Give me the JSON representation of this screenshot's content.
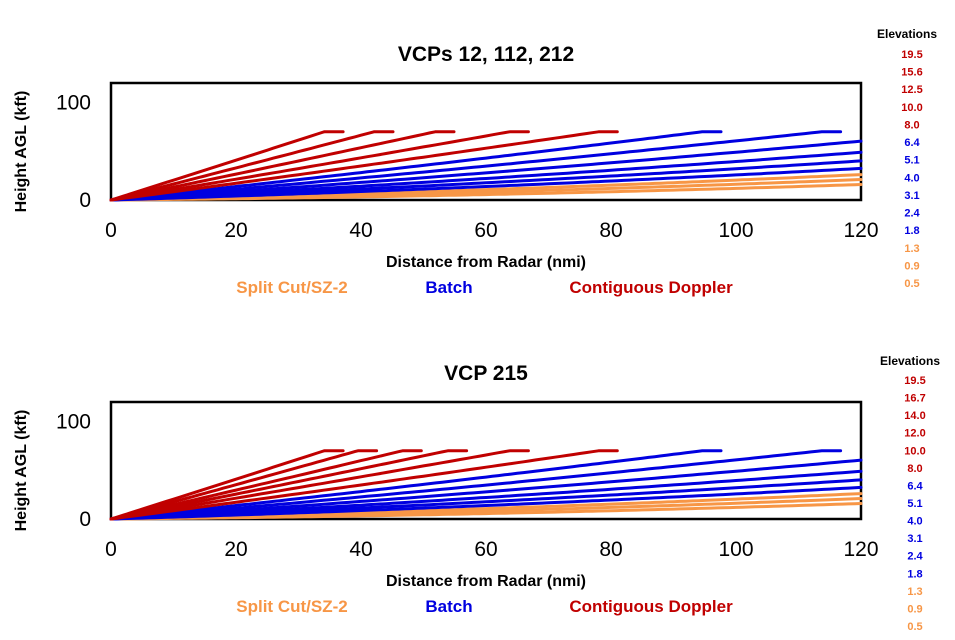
{
  "colors": {
    "split_cut": "#F79646",
    "batch": "#0000E0",
    "contiguous_doppler": "#C00000"
  },
  "chart_data": [
    {
      "type": "line",
      "title": "VCPs 12, 112, 212",
      "xlabel": "Distance from Radar (nmi)",
      "ylabel": "Height AGL (kft)",
      "xlim": [
        0,
        120
      ],
      "ylim": [
        0,
        120
      ],
      "x_ticks": [
        0,
        20,
        40,
        60,
        80,
        100,
        120
      ],
      "x_tick_labels": [
        "0",
        "20",
        "40",
        "60",
        "80",
        "100",
        "120"
      ],
      "y_ticks": [
        0,
        100
      ],
      "y_tick_labels": [
        "0",
        "100"
      ],
      "grid": false,
      "legend_label": "Elevations",
      "beam_top_kft": 70,
      "categories": [
        {
          "name": "Split Cut/SZ-2",
          "color_key": "split_cut"
        },
        {
          "name": "Batch",
          "color_key": "batch"
        },
        {
          "name": "Contiguous Doppler",
          "color_key": "contiguous_doppler"
        }
      ],
      "series": [
        {
          "name": "0.5",
          "category": "split_cut",
          "elevation_deg": 0.5
        },
        {
          "name": "0.9",
          "category": "split_cut",
          "elevation_deg": 0.9
        },
        {
          "name": "1.3",
          "category": "split_cut",
          "elevation_deg": 1.3
        },
        {
          "name": "1.8",
          "category": "batch",
          "elevation_deg": 1.8
        },
        {
          "name": "2.4",
          "category": "batch",
          "elevation_deg": 2.4
        },
        {
          "name": "3.1",
          "category": "batch",
          "elevation_deg": 3.1
        },
        {
          "name": "4.0",
          "category": "batch",
          "elevation_deg": 4.0
        },
        {
          "name": "5.1",
          "category": "batch",
          "elevation_deg": 5.1
        },
        {
          "name": "6.4",
          "category": "batch",
          "elevation_deg": 6.4
        },
        {
          "name": "8.0",
          "category": "contiguous_doppler",
          "elevation_deg": 8.0
        },
        {
          "name": "10.0",
          "category": "contiguous_doppler",
          "elevation_deg": 10.0
        },
        {
          "name": "12.5",
          "category": "contiguous_doppler",
          "elevation_deg": 12.5
        },
        {
          "name": "15.6",
          "category": "contiguous_doppler",
          "elevation_deg": 15.6
        },
        {
          "name": "19.5",
          "category": "contiguous_doppler",
          "elevation_deg": 19.5
        }
      ]
    },
    {
      "type": "line",
      "title": "VCP 215",
      "xlabel": "Distance from Radar (nmi)",
      "ylabel": "Height AGL (kft)",
      "xlim": [
        0,
        120
      ],
      "ylim": [
        0,
        120
      ],
      "x_ticks": [
        0,
        20,
        40,
        60,
        80,
        100,
        120
      ],
      "x_tick_labels": [
        "0",
        "20",
        "40",
        "60",
        "80",
        "100",
        "120"
      ],
      "y_ticks": [
        0,
        100
      ],
      "y_tick_labels": [
        "0",
        "100"
      ],
      "grid": false,
      "legend_label": "Elevations",
      "beam_top_kft": 70,
      "categories": [
        {
          "name": "Split Cut/SZ-2",
          "color_key": "split_cut"
        },
        {
          "name": "Batch",
          "color_key": "batch"
        },
        {
          "name": "Contiguous Doppler",
          "color_key": "contiguous_doppler"
        }
      ],
      "series": [
        {
          "name": "0.5",
          "category": "split_cut",
          "elevation_deg": 0.5
        },
        {
          "name": "0.9",
          "category": "split_cut",
          "elevation_deg": 0.9
        },
        {
          "name": "1.3",
          "category": "split_cut",
          "elevation_deg": 1.3
        },
        {
          "name": "1.8",
          "category": "batch",
          "elevation_deg": 1.8
        },
        {
          "name": "2.4",
          "category": "batch",
          "elevation_deg": 2.4
        },
        {
          "name": "3.1",
          "category": "batch",
          "elevation_deg": 3.1
        },
        {
          "name": "4.0",
          "category": "batch",
          "elevation_deg": 4.0
        },
        {
          "name": "5.1",
          "category": "batch",
          "elevation_deg": 5.1
        },
        {
          "name": "6.4",
          "category": "batch",
          "elevation_deg": 6.4
        },
        {
          "name": "8.0",
          "category": "contiguous_doppler",
          "elevation_deg": 8.0
        },
        {
          "name": "10.0",
          "category": "contiguous_doppler",
          "elevation_deg": 10.0
        },
        {
          "name": "12.0",
          "category": "contiguous_doppler",
          "elevation_deg": 12.0
        },
        {
          "name": "14.0",
          "category": "contiguous_doppler",
          "elevation_deg": 14.0
        },
        {
          "name": "16.7",
          "category": "contiguous_doppler",
          "elevation_deg": 16.7
        },
        {
          "name": "19.5",
          "category": "contiguous_doppler",
          "elevation_deg": 19.5
        }
      ]
    }
  ]
}
